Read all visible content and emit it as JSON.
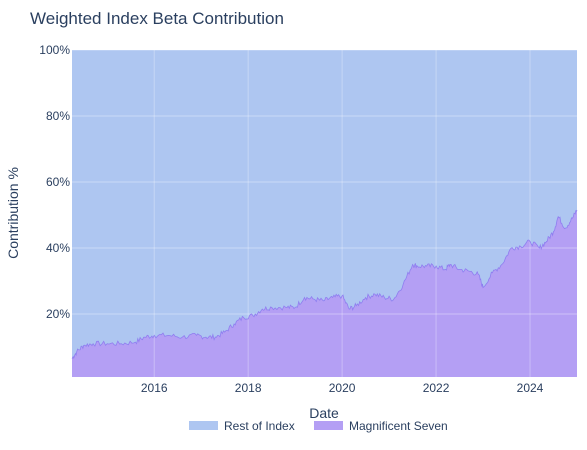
{
  "chart_data": {
    "type": "area",
    "stacked": true,
    "title": "Weighted Index Beta Contribution",
    "xlabel": "Date",
    "ylabel": "Contribution %",
    "xlim": [
      2014.25,
      2025.0
    ],
    "ylim": [
      0,
      100
    ],
    "x_ticks": [
      2016,
      2018,
      2020,
      2022,
      2024
    ],
    "x_tick_labels": [
      "2016",
      "2018",
      "2020",
      "2022",
      "2024"
    ],
    "y_ticks": [
      20,
      40,
      60,
      80,
      100
    ],
    "y_tick_labels": [
      "20%",
      "40%",
      "60%",
      "80%",
      "100%"
    ],
    "grid": true,
    "legend_position": "bottom-center",
    "series": [
      {
        "name": "Magnificent Seven",
        "color": "#b49ff4",
        "line_color": "#8f7ef0",
        "x": [
          2014.25,
          2014.35,
          2014.5,
          2014.7,
          2015.0,
          2015.3,
          2015.6,
          2015.8,
          2016.0,
          2016.3,
          2016.6,
          2016.9,
          2017.1,
          2017.3,
          2017.5,
          2017.7,
          2017.9,
          2018.1,
          2018.3,
          2018.5,
          2018.8,
          2019.0,
          2019.2,
          2019.4,
          2019.6,
          2019.8,
          2020.0,
          2020.15,
          2020.3,
          2020.5,
          2020.7,
          2020.9,
          2021.1,
          2021.3,
          2021.5,
          2021.6,
          2021.8,
          2022.0,
          2022.2,
          2022.3,
          2022.5,
          2022.7,
          2022.9,
          2023.0,
          2023.2,
          2023.4,
          2023.6,
          2023.8,
          2024.0,
          2024.2,
          2024.35,
          2024.5,
          2024.6,
          2024.75,
          2024.9,
          2025.0
        ],
        "values": [
          6.5,
          8.5,
          10.5,
          11.0,
          11.0,
          11.0,
          11.5,
          13.0,
          13.5,
          13.5,
          13.0,
          13.5,
          13.0,
          13.0,
          14.5,
          17.0,
          19.0,
          19.5,
          21.5,
          22.0,
          22.0,
          22.0,
          25.0,
          24.5,
          24.0,
          25.0,
          25.5,
          21.5,
          22.5,
          25.0,
          26.0,
          25.0,
          24.5,
          29.0,
          35.0,
          34.5,
          34.5,
          34.5,
          33.5,
          35.0,
          33.5,
          33.0,
          32.0,
          28.0,
          32.5,
          35.0,
          40.0,
          40.5,
          42.0,
          40.0,
          42.0,
          45.0,
          49.5,
          46.0,
          49.0,
          51.5
        ]
      },
      {
        "name": "Rest of Index",
        "color": "#aec6f1",
        "line_color": "#9db6ec",
        "note_top": 100
      }
    ]
  }
}
